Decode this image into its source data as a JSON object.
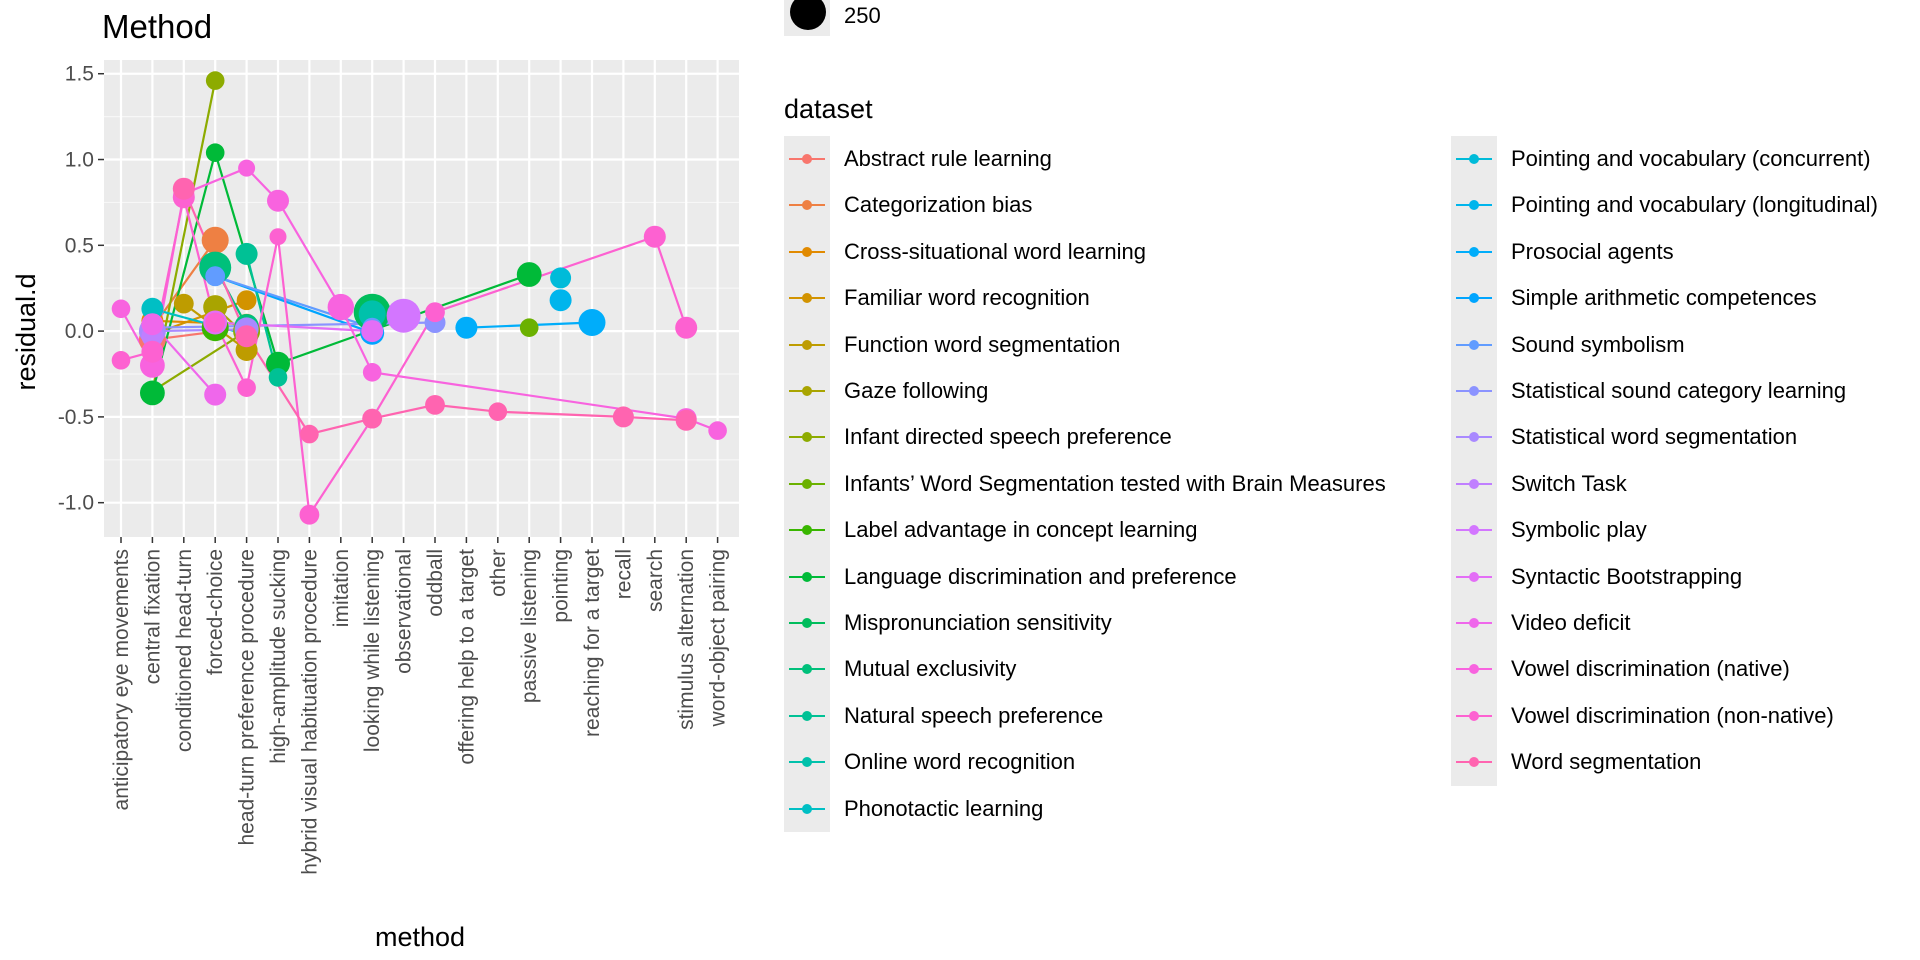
{
  "chart_data": {
    "type": "scatter",
    "title": "Method",
    "xlabel": "method",
    "ylabel": "residual.d",
    "ylim": [
      -1.2,
      1.58
    ],
    "grid": true,
    "legend_position": "right",
    "categories": [
      "anticipatory eye movements",
      "central fixation",
      "conditioned head-turn",
      "forced-choice",
      "head-turn preference procedure",
      "high-amplitude sucking",
      "hybrid visual habituation procedure",
      "imitation",
      "looking while listening",
      "observational",
      "oddball",
      "offering help to a target",
      "other",
      "passive listening",
      "pointing",
      "reaching for a target",
      "recall",
      "search",
      "stimulus alternation",
      "word-object pairing"
    ],
    "y_ticks": [
      {
        "value": 1.5,
        "label": "1.5"
      },
      {
        "value": 1.0,
        "label": "1.0"
      },
      {
        "value": 0.5,
        "label": "0.5"
      },
      {
        "value": 0.0,
        "label": "0.0"
      },
      {
        "value": -0.5,
        "label": "-0.5"
      },
      {
        "value": -1.0,
        "label": "-1.0"
      }
    ],
    "size_legend": {
      "value": 250,
      "label": "250"
    },
    "color_legend_title": "dataset",
    "series": [
      {
        "name": "Abstract rule learning",
        "color": "#F8766D",
        "points": [
          {
            "x": "central fixation",
            "y": -0.05,
            "n": 60
          },
          {
            "x": "head-turn preference procedure",
            "y": 0.02,
            "n": 50
          }
        ]
      },
      {
        "name": "Categorization bias",
        "color": "#EE8043",
        "points": [
          {
            "x": "forced-choice",
            "y": 0.53,
            "n": 60
          },
          {
            "x": "central fixation",
            "y": 0.02,
            "n": 40
          }
        ]
      },
      {
        "name": "Cross-situational word learning",
        "color": "#E18A00",
        "points": [
          {
            "x": "central fixation",
            "y": 0.06,
            "n": 30
          },
          {
            "x": "head-turn preference procedure",
            "y": 0.04,
            "n": 25
          }
        ]
      },
      {
        "name": "Familiar word recognition",
        "color": "#D29300",
        "points": [
          {
            "x": "head-turn preference procedure",
            "y": 0.18,
            "n": 20
          },
          {
            "x": "central fixation",
            "y": -0.02,
            "n": 20
          }
        ]
      },
      {
        "name": "Function word segmentation",
        "color": "#BE9C00",
        "points": [
          {
            "x": "head-turn preference procedure",
            "y": -0.11,
            "n": 30
          },
          {
            "x": "conditioned head-turn",
            "y": 0.16,
            "n": 20
          }
        ]
      },
      {
        "name": "Gaze following",
        "color": "#A9A400",
        "points": [
          {
            "x": "forced-choice",
            "y": 0.14,
            "n": 40
          },
          {
            "x": "head-turn preference procedure",
            "y": -0.03,
            "n": 20
          }
        ]
      },
      {
        "name": "Infant directed speech preference",
        "color": "#8DAB00",
        "points": [
          {
            "x": "forced-choice",
            "y": 1.46,
            "n": 15
          },
          {
            "x": "central fixation",
            "y": -0.35,
            "n": 15
          },
          {
            "x": "head-turn preference procedure",
            "y": 0.0,
            "n": 60
          }
        ]
      },
      {
        "name": "Infants’ Word Segmentation tested with Brain Measures",
        "color": "#6BB100",
        "points": [
          {
            "x": "passive listening",
            "y": 0.02,
            "n": 15
          }
        ]
      },
      {
        "name": "Label advantage in concept learning",
        "color": "#39B600",
        "points": [
          {
            "x": "forced-choice",
            "y": 0.02,
            "n": 60
          }
        ]
      },
      {
        "name": "Language discrimination and preference",
        "color": "#00BA38",
        "points": [
          {
            "x": "central fixation",
            "y": -0.36,
            "n": 45
          },
          {
            "x": "forced-choice",
            "y": 1.04,
            "n": 15
          },
          {
            "x": "high-amplitude sucking",
            "y": -0.19,
            "n": 40
          },
          {
            "x": "passive listening",
            "y": 0.33,
            "n": 45
          }
        ]
      },
      {
        "name": "Mispronunciation sensitivity",
        "color": "#00BD5C",
        "points": [
          {
            "x": "looking while listening",
            "y": 0.11,
            "n": 150
          }
        ]
      },
      {
        "name": "Mutual exclusivity",
        "color": "#00C07B",
        "points": [
          {
            "x": "forced-choice",
            "y": 0.37,
            "n": 100
          },
          {
            "x": "head-turn preference procedure",
            "y": 0.03,
            "n": 40
          }
        ]
      },
      {
        "name": "Natural speech preference",
        "color": "#00C195",
        "points": [
          {
            "x": "head-turn preference procedure",
            "y": 0.45,
            "n": 30
          },
          {
            "x": "high-amplitude sucking",
            "y": -0.27,
            "n": 15
          }
        ]
      },
      {
        "name": "Online word recognition",
        "color": "#00C1AB",
        "points": [
          {
            "x": "looking while listening",
            "y": 0.1,
            "n": 60
          }
        ]
      },
      {
        "name": "Phonotactic learning",
        "color": "#00BFC4",
        "points": [
          {
            "x": "central fixation",
            "y": 0.13,
            "n": 30
          },
          {
            "x": "head-turn preference procedure",
            "y": -0.02,
            "n": 30
          }
        ]
      },
      {
        "name": "Pointing and vocabulary (concurrent)",
        "color": "#00BBD9",
        "points": [
          {
            "x": "pointing",
            "y": 0.31,
            "n": 25
          }
        ]
      },
      {
        "name": "Pointing and vocabulary (longitudinal)",
        "color": "#00B5EC",
        "points": [
          {
            "x": "pointing",
            "y": 0.18,
            "n": 30
          }
        ]
      },
      {
        "name": "Prosocial agents",
        "color": "#00ADFA",
        "points": [
          {
            "x": "reaching for a target",
            "y": 0.05,
            "n": 60
          },
          {
            "x": "offering help to a target",
            "y": 0.02,
            "n": 30
          }
        ]
      },
      {
        "name": "Simple arithmetic competences",
        "color": "#00A5FF",
        "points": [
          {
            "x": "looking while listening",
            "y": -0.01,
            "n": 40
          },
          {
            "x": "forced-choice",
            "y": 0.32,
            "n": 20
          }
        ]
      },
      {
        "name": "Sound symbolism",
        "color": "#619CFF",
        "points": [
          {
            "x": "forced-choice",
            "y": 0.32,
            "n": 20
          },
          {
            "x": "looking while listening",
            "y": 0.02,
            "n": 20
          }
        ]
      },
      {
        "name": "Statistical sound category learning",
        "color": "#8B93FF",
        "points": [
          {
            "x": "oddball",
            "y": 0.05,
            "n": 25
          },
          {
            "x": "central fixation",
            "y": 0.02,
            "n": 30
          }
        ]
      },
      {
        "name": "Statistical word segmentation",
        "color": "#A989FF",
        "points": [
          {
            "x": "central fixation",
            "y": 0.0,
            "n": 60
          },
          {
            "x": "head-turn preference procedure",
            "y": 0.01,
            "n": 40
          }
        ]
      },
      {
        "name": "Switch Task",
        "color": "#C07FFF",
        "points": [
          {
            "x": "central fixation",
            "y": -0.03,
            "n": 30
          }
        ]
      },
      {
        "name": "Symbolic play",
        "color": "#D376FF",
        "points": [
          {
            "x": "observational",
            "y": 0.09,
            "n": 120
          }
        ]
      },
      {
        "name": "Syntactic Bootstrapping",
        "color": "#E36EF6",
        "points": [
          {
            "x": "forced-choice",
            "y": 0.05,
            "n": 40
          },
          {
            "x": "looking while listening",
            "y": 0.0,
            "n": 30
          }
        ]
      },
      {
        "name": "Video deficit",
        "color": "#EF67EB",
        "points": [
          {
            "x": "forced-choice",
            "y": -0.37,
            "n": 30
          },
          {
            "x": "central fixation",
            "y": 0.04,
            "n": 30
          }
        ]
      },
      {
        "name": "Vowel discrimination (native)",
        "color": "#F863DF",
        "points": [
          {
            "x": "anticipatory eye movements",
            "y": 0.13,
            "n": 15
          },
          {
            "x": "central fixation",
            "y": -0.2,
            "n": 45
          },
          {
            "x": "conditioned head-turn",
            "y": 0.8,
            "n": 25
          },
          {
            "x": "head-turn preference procedure",
            "y": 0.95,
            "n": 10
          },
          {
            "x": "high-amplitude sucking",
            "y": 0.76,
            "n": 30
          },
          {
            "x": "imitation",
            "y": 0.14,
            "n": 55
          },
          {
            "x": "looking while listening",
            "y": -0.24,
            "n": 15
          },
          {
            "x": "stimulus alternation",
            "y": -0.51,
            "n": 25
          },
          {
            "x": "word-object pairing",
            "y": -0.58,
            "n": 15
          }
        ]
      },
      {
        "name": "Vowel discrimination (non-native)",
        "color": "#FD61D1",
        "points": [
          {
            "x": "anticipatory eye movements",
            "y": -0.17,
            "n": 15
          },
          {
            "x": "central fixation",
            "y": -0.12,
            "n": 30
          },
          {
            "x": "conditioned head-turn",
            "y": 0.78,
            "n": 30
          },
          {
            "x": "forced-choice",
            "y": 0.05,
            "n": 20
          },
          {
            "x": "head-turn preference procedure",
            "y": -0.33,
            "n": 15
          },
          {
            "x": "high-amplitude sucking",
            "y": 0.55,
            "n": 10
          },
          {
            "x": "hybrid visual habituation procedure",
            "y": -1.07,
            "n": 20
          },
          {
            "x": "looking while listening",
            "y": -0.51,
            "n": 20
          },
          {
            "x": "oddball",
            "y": 0.11,
            "n": 20
          },
          {
            "x": "search",
            "y": 0.55,
            "n": 30
          },
          {
            "x": "stimulus alternation",
            "y": 0.02,
            "n": 30
          }
        ]
      },
      {
        "name": "Word segmentation",
        "color": "#FF64B0",
        "points": [
          {
            "x": "conditioned head-turn",
            "y": 0.83,
            "n": 30
          },
          {
            "x": "head-turn preference procedure",
            "y": -0.03,
            "n": 30
          },
          {
            "x": "hybrid visual habituation procedure",
            "y": -0.6,
            "n": 15
          },
          {
            "x": "looking while listening",
            "y": -0.51,
            "n": 20
          },
          {
            "x": "oddball",
            "y": -0.43,
            "n": 20
          },
          {
            "x": "other",
            "y": -0.47,
            "n": 15
          },
          {
            "x": "recall",
            "y": -0.5,
            "n": 25
          },
          {
            "x": "stimulus alternation",
            "y": -0.52,
            "n": 25
          }
        ]
      }
    ]
  }
}
